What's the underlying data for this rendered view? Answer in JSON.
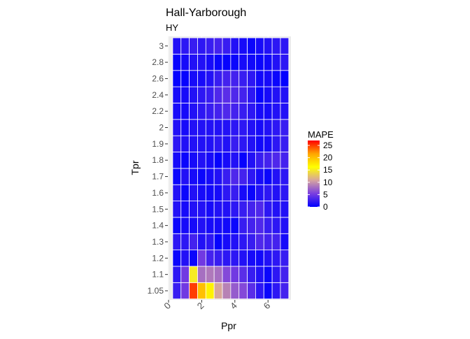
{
  "chart_data": {
    "type": "heatmap",
    "title": "Hall-Yarborough",
    "subtitle": "HY",
    "xlabel": "Ppr",
    "ylabel": "Tpr",
    "x": [
      0.5,
      1.0,
      1.5,
      2.0,
      2.5,
      3.0,
      3.5,
      4.0,
      4.5,
      5.0,
      5.5,
      6.0,
      6.5,
      7.0
    ],
    "x_ticks": [
      0,
      2,
      4,
      6
    ],
    "y_categories": [
      "1.05",
      "1.1",
      "1.2",
      "1.3",
      "1.4",
      "1.5",
      "1.6",
      "1.7",
      "1.8",
      "1.9",
      "2",
      "2.2",
      "2.4",
      "2.6",
      "2.8",
      "3"
    ],
    "values": [
      [
        2.5,
        5,
        25,
        20,
        17,
        11,
        9,
        7,
        6,
        4,
        2,
        0.5,
        2,
        3
      ],
      [
        2,
        5,
        15,
        8,
        8.5,
        8,
        6,
        5,
        4,
        2.5,
        1.5,
        0.5,
        2,
        3
      ],
      [
        0.5,
        1.5,
        0.5,
        5,
        3,
        2.5,
        2,
        2,
        1.5,
        1,
        0.8,
        1.5,
        2,
        2.5
      ],
      [
        2,
        2,
        3,
        1.5,
        2,
        0.3,
        1,
        1.5,
        2,
        2.5,
        3.5,
        3,
        3,
        1
      ],
      [
        0.5,
        1,
        1,
        1.5,
        1,
        1,
        0.8,
        0.5,
        2.5,
        3,
        3.5,
        2.5,
        2,
        1.5
      ],
      [
        1.5,
        1,
        1.5,
        1.5,
        1,
        1.5,
        1.5,
        2,
        2.5,
        3,
        3.5,
        2,
        1.5,
        1.5
      ],
      [
        1.5,
        0.5,
        1.5,
        1,
        0.8,
        1,
        2,
        2.5,
        1,
        0.5,
        1.5,
        2,
        1.5,
        2
      ],
      [
        0.5,
        1.5,
        1,
        0.5,
        1,
        1.5,
        2.5,
        3.5,
        3,
        2,
        1,
        0.5,
        1.5,
        2
      ],
      [
        1,
        0.5,
        1,
        1.5,
        1,
        0.3,
        1,
        1.5,
        0.3,
        1.5,
        2.5,
        3,
        3.5,
        3
      ],
      [
        2,
        1.5,
        1.5,
        1.5,
        1.5,
        2,
        1.5,
        2.5,
        2,
        1.5,
        0.8,
        1,
        2,
        2.5
      ],
      [
        1.5,
        1,
        1.5,
        1.5,
        1.5,
        1.5,
        1.5,
        2,
        2,
        1.5,
        1,
        1.5,
        2,
        2.5
      ],
      [
        1,
        1,
        1.5,
        2,
        2.5,
        3,
        3.5,
        3,
        2.5,
        2,
        1,
        1,
        1.5,
        1.5
      ],
      [
        1,
        1,
        1.5,
        2,
        2.5,
        3.5,
        4,
        3.5,
        3,
        2,
        0.3,
        1,
        1.5,
        1.5
      ],
      [
        0.2,
        0.3,
        1,
        1,
        1.5,
        2.5,
        3,
        3,
        2.5,
        2,
        0.8,
        1,
        0.5,
        0.2
      ],
      [
        0.3,
        1,
        1.5,
        1.5,
        1,
        0.5,
        0.3,
        0.5,
        1,
        0.8,
        0.5,
        0.8,
        1.5,
        2
      ],
      [
        1.5,
        2,
        2.5,
        2,
        2.5,
        3,
        2.5,
        1.5,
        1,
        0.5,
        1,
        1.5,
        2,
        2
      ]
    ],
    "legend": {
      "title": "MAPE",
      "ticks": [
        "0",
        "5",
        "10",
        "15",
        "20",
        "25"
      ],
      "range": [
        0,
        27
      ],
      "colors": [
        "#0000ff",
        "#7a3ee0",
        "#d6a4a0",
        "#ffff00",
        "#ffa500",
        "#ff0000"
      ],
      "placement": "right"
    },
    "grid": true
  }
}
